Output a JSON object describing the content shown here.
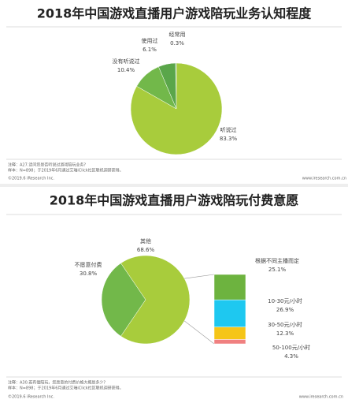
{
  "chart_data": [
    {
      "type": "pie",
      "title": "2018年中国游戏直播用户游戏陪玩业务认知程度",
      "categories": [
        "经常用",
        "使用过",
        "没有听说过",
        "听说过"
      ],
      "values": [
        0.3,
        6.1,
        10.4,
        83.3
      ],
      "value_labels": [
        "0.3%",
        "6.1%",
        "10.4%",
        "83.3%"
      ],
      "colors": [
        "#2e8b57",
        "#5aa64a",
        "#72b84a",
        "#a8cc3c"
      ],
      "notes": [
        "注释：A27.请问您是否听说过游戏陪玩业务?",
        "样本：N=898；于2019年6月通过艾瑞iClick社区联机调研获得。"
      ],
      "source": "©2019.6 iResearch Inc.",
      "website": "www.iresearch.com.cn"
    },
    {
      "type": "bar-of-pie",
      "title": "2018年中国游戏直播用户游戏陪玩付费意愿",
      "categories": [
        "不愿意付费",
        "其他"
      ],
      "values": [
        30.8,
        68.6
      ],
      "value_labels": [
        "30.8%",
        "68.6%"
      ],
      "colors": [
        "#72b84a",
        "#a8cc3c"
      ],
      "breakdown": {
        "categories": [
          "根据不同主播而定",
          "10-30元/小时",
          "30-50元/小时",
          "50-100元/小时"
        ],
        "values": [
          25.1,
          26.9,
          12.3,
          4.3
        ],
        "value_labels": [
          "25.1%",
          "26.9%",
          "12.3%",
          "4.3%"
        ],
        "colors": [
          "#6db33f",
          "#1ec8f0",
          "#f5c518",
          "#f08080"
        ]
      },
      "notes": [
        "注释：A30.若有偿陪玩，您愿意的付费价格大概是多少?",
        "样本：N=898；于2019年6月通过艾瑞iClick社区联机调研获得。"
      ],
      "source": "©2019.6 iResearch Inc.",
      "website": "www.iresearch.com.cn"
    }
  ]
}
